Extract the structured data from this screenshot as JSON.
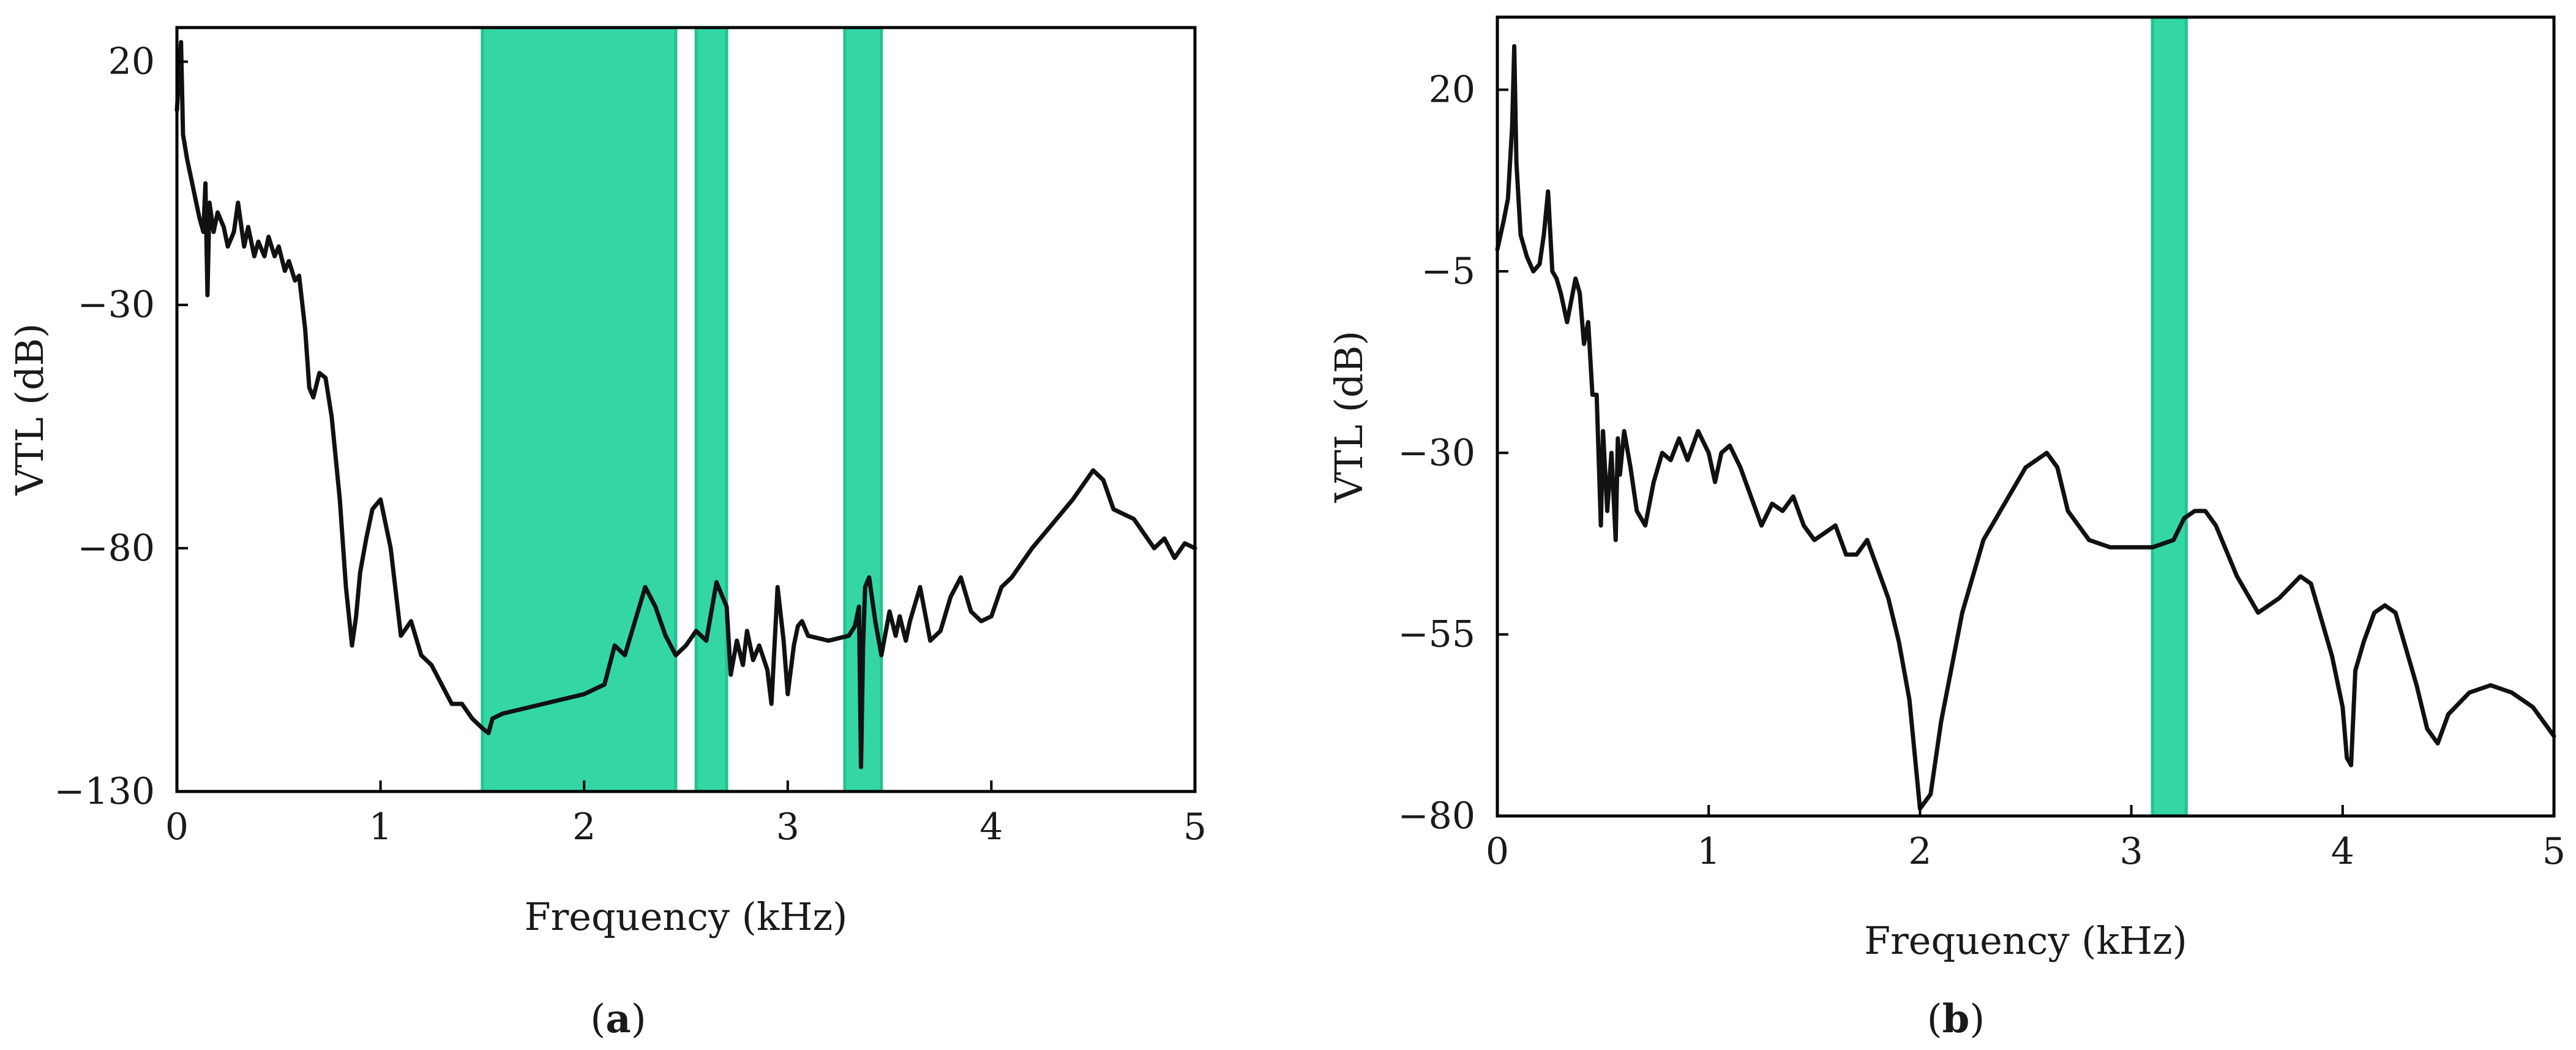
{
  "chart_data": [
    {
      "type": "line",
      "panel_label": "a",
      "xlabel": "Frequency (kHz)",
      "ylabel": "VTL (dB)",
      "xlim": [
        0,
        5
      ],
      "ylim": [
        -130,
        27
      ],
      "x_ticks": [
        0,
        1,
        2,
        3,
        4,
        5
      ],
      "y_ticks": [
        20,
        -30,
        -80,
        -130
      ],
      "grid": false,
      "band_color": "#34d6a6",
      "band_edge_color": "#22c38f",
      "highlight_bands": [
        [
          1.5,
          2.45
        ],
        [
          2.55,
          2.7
        ],
        [
          3.28,
          3.46
        ]
      ],
      "series": [
        {
          "x": [
            0,
            0.02,
            0.03,
            0.05,
            0.08,
            0.11,
            0.13,
            0.14,
            0.15,
            0.16,
            0.18,
            0.2,
            0.23,
            0.25,
            0.28,
            0.3,
            0.33,
            0.35,
            0.38,
            0.4,
            0.43,
            0.45,
            0.48,
            0.5,
            0.53,
            0.55,
            0.58,
            0.6,
            0.63,
            0.65,
            0.67,
            0.7,
            0.73,
            0.76,
            0.8,
            0.83,
            0.86,
            0.88,
            0.9,
            0.93,
            0.96,
            1,
            1.05,
            1.1,
            1.15,
            1.2,
            1.25,
            1.3,
            1.35,
            1.4,
            1.45,
            1.5,
            1.53,
            1.55,
            1.6,
            1.8,
            2.0,
            2.1,
            2.15,
            2.2,
            2.25,
            2.3,
            2.35,
            2.4,
            2.45,
            2.5,
            2.55,
            2.6,
            2.65,
            2.7,
            2.72,
            2.75,
            2.78,
            2.8,
            2.83,
            2.86,
            2.9,
            2.92,
            2.95,
            2.98,
            3.0,
            3.03,
            3.05,
            3.07,
            3.1,
            3.2,
            3.3,
            3.33,
            3.35,
            3.36,
            3.37,
            3.38,
            3.4,
            3.43,
            3.46,
            3.5,
            3.53,
            3.55,
            3.58,
            3.6,
            3.65,
            3.7,
            3.75,
            3.8,
            3.85,
            3.9,
            3.95,
            4.0,
            4.05,
            4.1,
            4.2,
            4.3,
            4.4,
            4.45,
            4.5,
            4.55,
            4.6,
            4.7,
            4.8,
            4.85,
            4.9,
            4.95,
            5.0
          ],
          "y": [
            10,
            24,
            5,
            0,
            -6,
            -12,
            -15,
            -5,
            -28,
            -9,
            -15,
            -11,
            -14,
            -18,
            -15,
            -9,
            -18,
            -14,
            -20,
            -17,
            -20,
            -16,
            -20,
            -18,
            -23,
            -21,
            -25,
            -24,
            -35,
            -47,
            -49,
            -44,
            -45,
            -53,
            -70,
            -88,
            -100,
            -94,
            -85,
            -78,
            -72,
            -70,
            -80,
            -98,
            -95,
            -102,
            -104,
            -108,
            -112,
            -112,
            -115,
            -117,
            -118,
            -115,
            -114,
            -112,
            -110,
            -108,
            -100,
            -102,
            -95,
            -88,
            -92,
            -98,
            -102,
            -100,
            -97,
            -99,
            -87,
            -92,
            -106,
            -99,
            -104,
            -97,
            -103,
            -100,
            -105,
            -112,
            -88,
            -99,
            -110,
            -100,
            -96,
            -95,
            -98,
            -99,
            -98,
            -96,
            -92,
            -125,
            -100,
            -88,
            -86,
            -95,
            -102,
            -93,
            -98,
            -94,
            -99,
            -95,
            -88,
            -99,
            -97,
            -90,
            -86,
            -93,
            -95,
            -94,
            -88,
            -86,
            -80,
            -75,
            -70,
            -67,
            -64,
            -66,
            -72,
            -74,
            -80,
            -78,
            -82,
            -79,
            -80
          ]
        }
      ]
    },
    {
      "type": "line",
      "panel_label": "b",
      "xlabel": "Frequency (kHz)",
      "ylabel": "VTL (dB)",
      "xlim": [
        0,
        5
      ],
      "ylim": [
        -80,
        30
      ],
      "x_ticks": [
        0,
        1,
        2,
        3,
        4,
        5
      ],
      "y_ticks": [
        20,
        -5,
        -30,
        -55,
        -80
      ],
      "grid": false,
      "band_color": "#34d6a6",
      "band_edge_color": "#22c38f",
      "highlight_bands": [
        [
          3.1,
          3.26
        ]
      ],
      "series": [
        {
          "x": [
            0,
            0.03,
            0.05,
            0.07,
            0.08,
            0.09,
            0.11,
            0.14,
            0.17,
            0.2,
            0.22,
            0.24,
            0.26,
            0.28,
            0.3,
            0.33,
            0.37,
            0.39,
            0.41,
            0.43,
            0.45,
            0.47,
            0.49,
            0.5,
            0.52,
            0.54,
            0.56,
            0.57,
            0.58,
            0.6,
            0.63,
            0.66,
            0.7,
            0.74,
            0.78,
            0.82,
            0.86,
            0.9,
            0.95,
            1.0,
            1.03,
            1.06,
            1.1,
            1.15,
            1.2,
            1.25,
            1.3,
            1.35,
            1.4,
            1.45,
            1.5,
            1.55,
            1.6,
            1.65,
            1.7,
            1.75,
            1.8,
            1.85,
            1.9,
            1.95,
            2.0,
            2.05,
            2.1,
            2.2,
            2.3,
            2.4,
            2.5,
            2.55,
            2.6,
            2.65,
            2.7,
            2.8,
            2.9,
            3.0,
            3.1,
            3.2,
            3.25,
            3.3,
            3.35,
            3.4,
            3.5,
            3.6,
            3.7,
            3.8,
            3.85,
            3.9,
            3.95,
            4.0,
            4.02,
            4.04,
            4.06,
            4.1,
            4.15,
            4.2,
            4.25,
            4.3,
            4.35,
            4.4,
            4.45,
            4.5,
            4.6,
            4.7,
            4.8,
            4.9,
            5.0
          ],
          "y": [
            -2,
            2,
            5,
            15,
            26,
            10,
            0,
            -3,
            -5,
            -4,
            0,
            6,
            -5,
            -6,
            -8,
            -12,
            -6,
            -8,
            -15,
            -12,
            -22,
            -22,
            -40,
            -27,
            -38,
            -30,
            -42,
            -28,
            -33,
            -27,
            -32,
            -38,
            -40,
            -34,
            -30,
            -31,
            -28,
            -31,
            -27,
            -30,
            -34,
            -30,
            -29,
            -32,
            -36,
            -40,
            -37,
            -38,
            -36,
            -40,
            -42,
            -41,
            -40,
            -44,
            -44,
            -42,
            -46,
            -50,
            -56,
            -64,
            -79,
            -77,
            -67,
            -52,
            -42,
            -37,
            -32,
            -31,
            -30,
            -32,
            -38,
            -42,
            -43,
            -43,
            -43,
            -42,
            -39,
            -38,
            -38,
            -40,
            -47,
            -52,
            -50,
            -47,
            -48,
            -53,
            -58,
            -65,
            -72,
            -73,
            -60,
            -56,
            -52,
            -51,
            -52,
            -57,
            -62,
            -68,
            -70,
            -66,
            -63,
            -62,
            -63,
            -65,
            -69
          ]
        }
      ]
    }
  ]
}
